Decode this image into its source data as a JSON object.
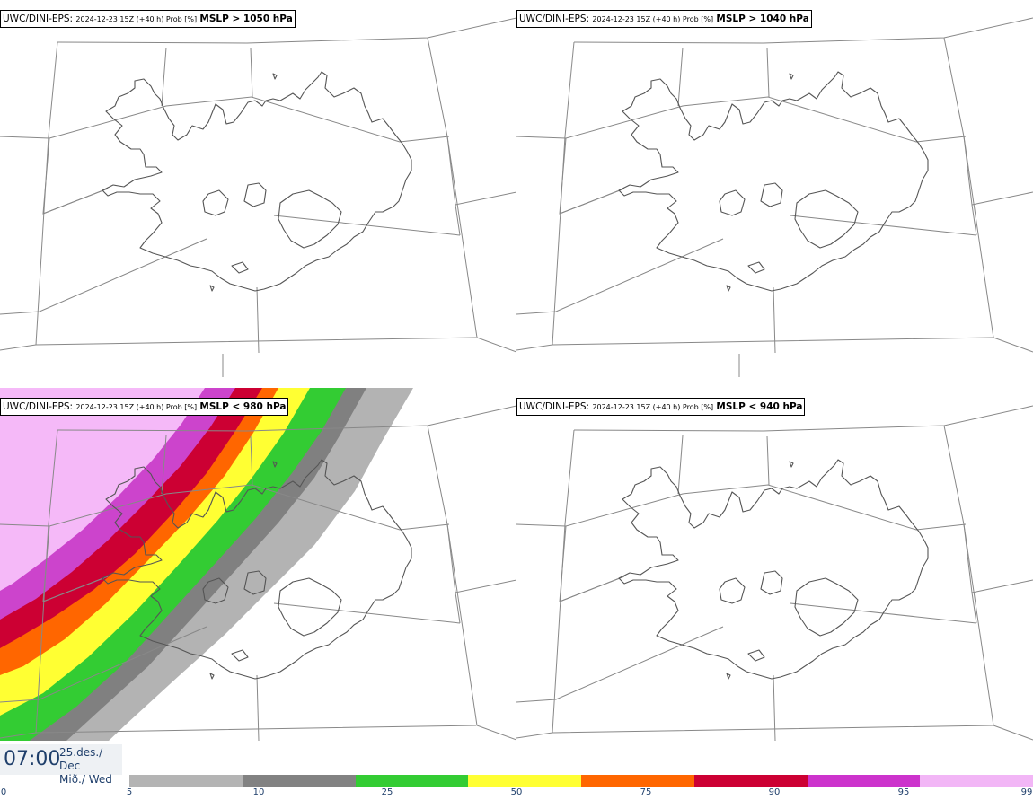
{
  "panels": [
    {
      "model": "UWC/DINI-EPS",
      "run": "2024-12-23 15Z (+40 h) Prob [%]",
      "variable": "MSLP > 1050 hPa"
    },
    {
      "model": "UWC/DINI-EPS",
      "run": "2024-12-23 15Z (+40 h) Prob [%]",
      "variable": "MSLP > 1040 hPa"
    },
    {
      "model": "UWC/DINI-EPS",
      "run": "2024-12-23 15Z (+40 h) Prob [%]",
      "variable": "MSLP < 980 hPa"
    },
    {
      "model": "UWC/DINI-EPS",
      "run": "2024-12-23 15Z (+40 h) Prob [%]",
      "variable": "MSLP < 940 hPa"
    }
  ],
  "valid_time": {
    "time": "07:00",
    "date_line1": "25.des./ Dec",
    "date_line2": "Mið./ Wed"
  },
  "legend": {
    "ticks": [
      "0",
      "5",
      "10",
      "25",
      "50",
      "75",
      "90",
      "95",
      "99"
    ],
    "colors": [
      "#b4b4b4",
      "#828282",
      "#33cc33",
      "#ffff33",
      "#ff6600",
      "#cc0033",
      "#cc33cc",
      "#f2b6f6"
    ]
  },
  "probability_field_colors": {
    "p95_99": "#f5b9f8",
    "p90_95": "#cc44cc",
    "p75_90": "#cc0033",
    "p50_75": "#ff6600",
    "p25_50": "#ffff33",
    "p10_25": "#33cc33",
    "p5_10": "#808080",
    "p0_5": "#b3b3b3"
  }
}
